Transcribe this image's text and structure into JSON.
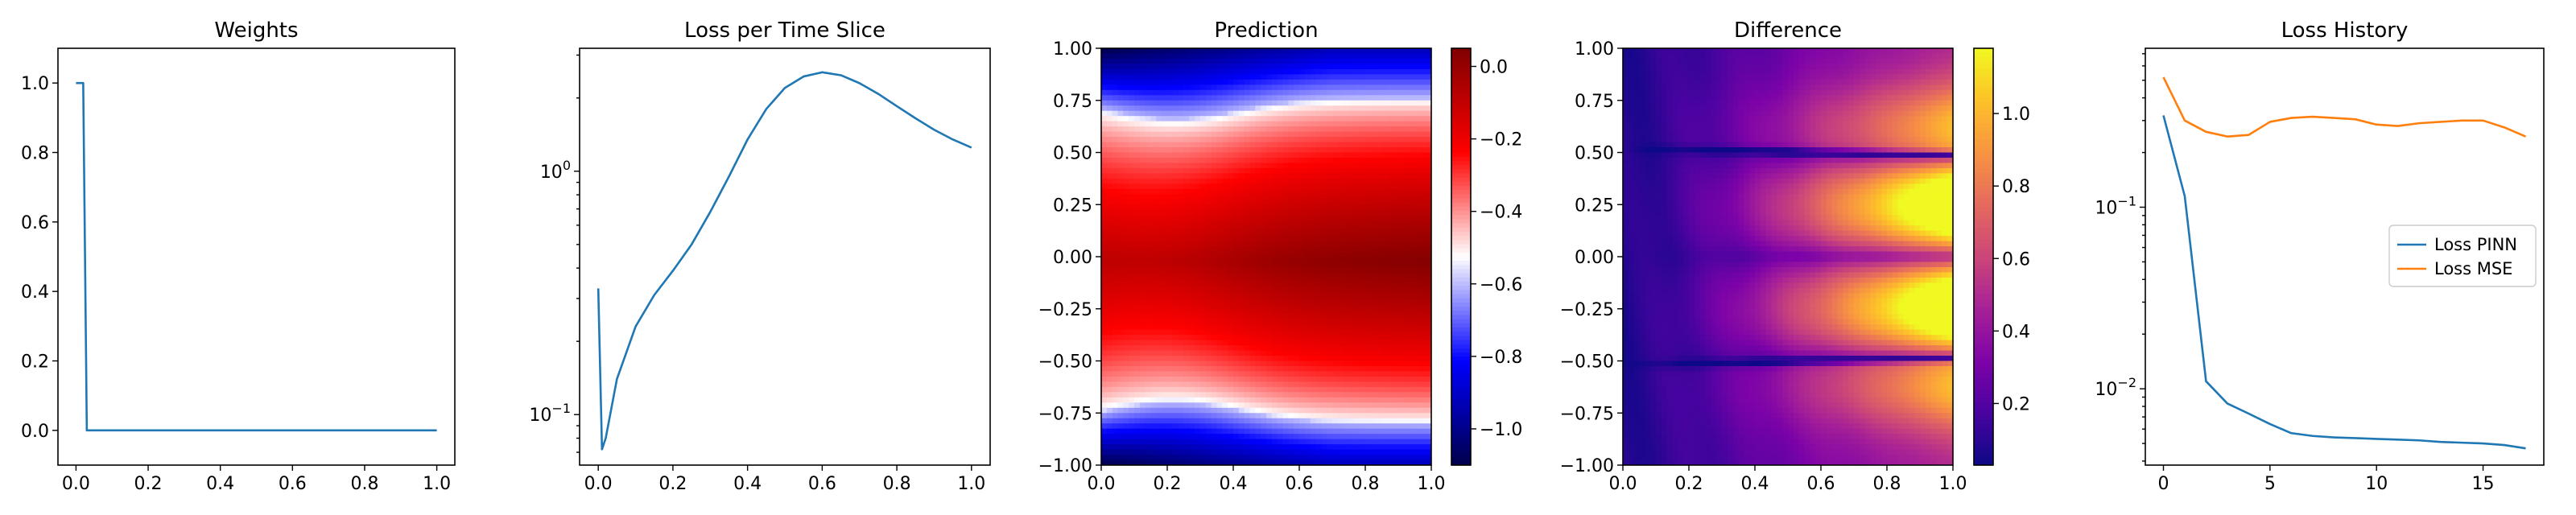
{
  "chart_data": [
    {
      "id": "weights",
      "type": "line",
      "title": "Weights",
      "xlim": [
        -0.05,
        1.05
      ],
      "ylim": [
        -0.1,
        1.1
      ],
      "xticks": [
        "0.0",
        "0.2",
        "0.4",
        "0.6",
        "0.8",
        "1.0"
      ],
      "yticks": [
        "0.0",
        "0.2",
        "0.4",
        "0.6",
        "0.8",
        "1.0"
      ],
      "series": [
        {
          "color": "#1f77b4",
          "x": [
            0.0,
            0.02,
            0.03,
            1.0
          ],
          "y": [
            1.0,
            1.0,
            0.0,
            0.0
          ]
        }
      ]
    },
    {
      "id": "loss_slice",
      "type": "line",
      "title": "Loss per Time Slice",
      "yscale": "log",
      "xlim": [
        -0.05,
        1.05
      ],
      "ylim": [
        0.062,
        3.2
      ],
      "xticks": [
        "0.0",
        "0.2",
        "0.4",
        "0.6",
        "0.8",
        "1.0"
      ],
      "yticks_log": [
        {
          "value": 0.1,
          "label": "10^{-1}"
        },
        {
          "value": 1.0,
          "label": "10^{0}"
        }
      ],
      "series": [
        {
          "color": "#1f77b4",
          "x": [
            0.0,
            0.01,
            0.02,
            0.05,
            0.1,
            0.15,
            0.2,
            0.25,
            0.3,
            0.35,
            0.4,
            0.45,
            0.5,
            0.55,
            0.6,
            0.65,
            0.7,
            0.75,
            0.8,
            0.85,
            0.9,
            0.95,
            1.0
          ],
          "y": [
            0.33,
            0.072,
            0.08,
            0.14,
            0.23,
            0.31,
            0.39,
            0.5,
            0.68,
            0.95,
            1.35,
            1.8,
            2.2,
            2.45,
            2.55,
            2.48,
            2.3,
            2.08,
            1.85,
            1.65,
            1.48,
            1.35,
            1.25
          ]
        }
      ]
    },
    {
      "id": "prediction",
      "type": "heatmap",
      "title": "Prediction",
      "colormap": "seismic",
      "xlim": [
        0,
        1
      ],
      "ylim": [
        -1,
        1
      ],
      "xticks": [
        "0.0",
        "0.2",
        "0.4",
        "0.6",
        "0.8",
        "1.0"
      ],
      "yticks": [
        "1.00",
        "0.75",
        "0.50",
        "0.25",
        "0.00",
        "−0.25",
        "−0.50",
        "−0.75",
        "−1.00"
      ],
      "vmin": -1.1,
      "vmax": 0.05,
      "colorbar_ticks": [
        "0.0",
        "−0.2",
        "−0.4",
        "−0.6",
        "−0.8",
        "−1.0"
      ]
    },
    {
      "id": "difference",
      "type": "heatmap",
      "title": "Difference",
      "colormap": "plasma",
      "xlim": [
        0,
        1
      ],
      "ylim": [
        -1,
        1
      ],
      "xticks": [
        "0.0",
        "0.2",
        "0.4",
        "0.6",
        "0.8",
        "1.0"
      ],
      "yticks": [
        "1.00",
        "0.75",
        "0.50",
        "0.25",
        "0.00",
        "−0.25",
        "−0.50",
        "−0.75",
        "−1.00"
      ],
      "vmin": 0.03,
      "vmax": 1.18,
      "colorbar_ticks": [
        "1.0",
        "0.8",
        "0.6",
        "0.4",
        "0.2"
      ]
    },
    {
      "id": "loss_history",
      "type": "line",
      "title": "Loss History",
      "yscale": "log",
      "xlim": [
        -0.85,
        17.85
      ],
      "ylim": [
        0.0038,
        0.75
      ],
      "xticks": [
        "0",
        "5",
        "10",
        "15"
      ],
      "yticks_log": [
        {
          "value": 0.01,
          "label": "10^{-2}"
        },
        {
          "value": 0.1,
          "label": "10^{-1}"
        }
      ],
      "legend": "center-right",
      "series": [
        {
          "name": "Loss PINN",
          "color": "#1f77b4",
          "x": [
            0,
            1,
            2,
            3,
            4,
            5,
            6,
            7,
            8,
            9,
            10,
            11,
            12,
            13,
            14,
            15,
            16,
            17
          ],
          "y": [
            0.32,
            0.115,
            0.011,
            0.0083,
            0.0073,
            0.0064,
            0.0057,
            0.0055,
            0.0054,
            0.00535,
            0.0053,
            0.00525,
            0.0052,
            0.0051,
            0.00505,
            0.005,
            0.0049,
            0.0047
          ]
        },
        {
          "name": "Loss MSE",
          "color": "#ff7f0e",
          "x": [
            0,
            1,
            2,
            3,
            4,
            5,
            6,
            7,
            8,
            9,
            10,
            11,
            12,
            13,
            14,
            15,
            16,
            17
          ],
          "y": [
            0.52,
            0.3,
            0.26,
            0.245,
            0.25,
            0.295,
            0.31,
            0.315,
            0.31,
            0.305,
            0.285,
            0.28,
            0.29,
            0.295,
            0.3,
            0.3,
            0.275,
            0.245
          ]
        }
      ]
    }
  ]
}
